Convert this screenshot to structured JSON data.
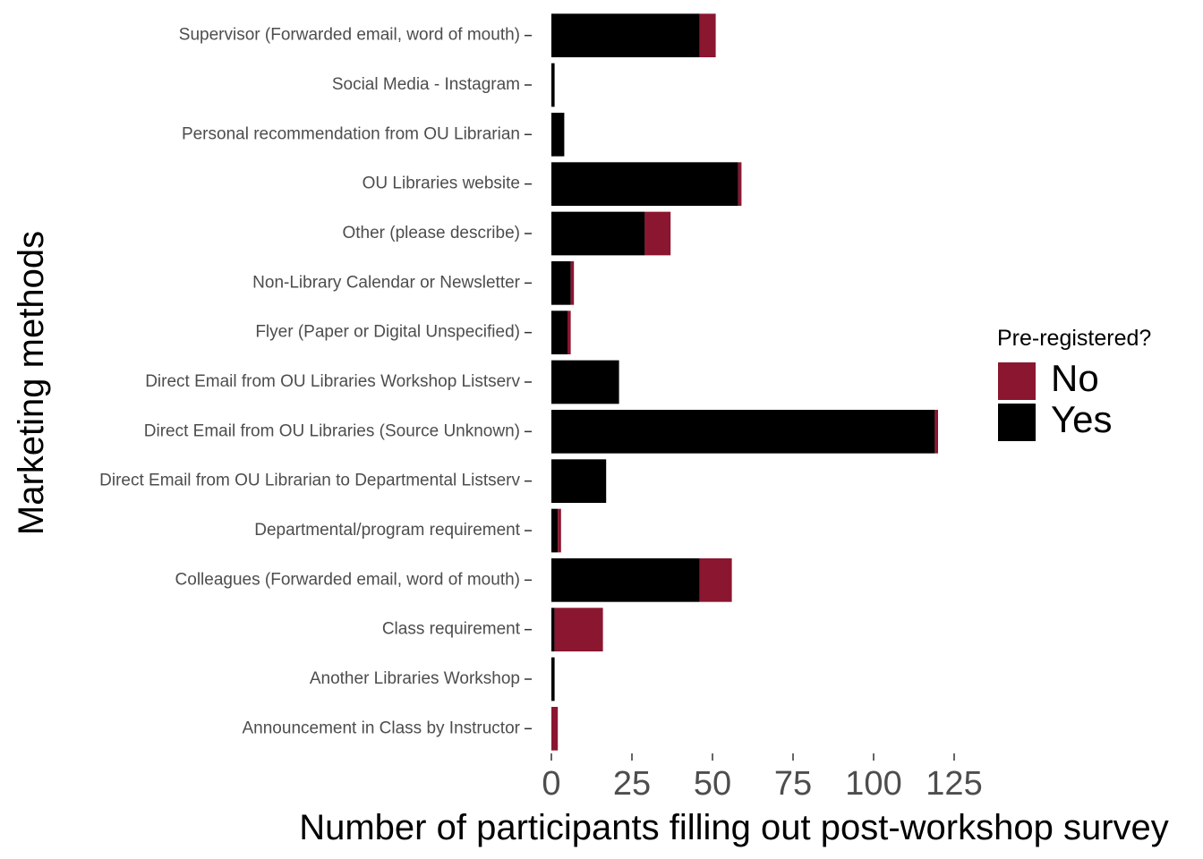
{
  "chart_data": {
    "type": "bar",
    "orientation": "horizontal",
    "stacked": true,
    "xlabel": "Number of participants filling out post-workshop survey",
    "ylabel": "Marketing methods",
    "xlim": [
      0,
      125
    ],
    "x_ticks": [
      "0",
      "25",
      "50",
      "75",
      "100",
      "125"
    ],
    "x_tick_values": [
      0,
      25,
      50,
      75,
      100,
      125
    ],
    "grid": false,
    "categories": [
      "Supervisor (Forwarded email, word of mouth)",
      "Social Media - Instagram",
      "Personal recommendation from OU Librarian",
      "OU Libraries website",
      "Other (please describe)",
      "Non-Library Calendar or Newsletter",
      "Flyer (Paper or Digital Unspecified)",
      "Direct Email from OU Libraries Workshop Listserv",
      "Direct Email from OU Libraries (Source Unknown)",
      "Direct Email from OU Librarian to Departmental Listserv",
      "Departmental/program requirement",
      "Colleagues (Forwarded email, word of mouth)",
      "Class requirement",
      "Another Libraries Workshop",
      "Announcement in Class by Instructor"
    ],
    "series": [
      {
        "name": "Yes",
        "color": "#000000",
        "values": [
          46,
          1,
          4,
          58,
          29,
          6,
          5,
          21,
          119,
          17,
          2,
          46,
          1,
          1,
          0
        ]
      },
      {
        "name": "No",
        "color": "#8b1630",
        "values": [
          5,
          0,
          0,
          1,
          8,
          1,
          1,
          0,
          1,
          0,
          1,
          10,
          15,
          0,
          2
        ]
      }
    ],
    "legend": {
      "title": "Pre-registered?",
      "position": "right",
      "entries": [
        {
          "label": "No",
          "color": "#8b1630"
        },
        {
          "label": "Yes",
          "color": "#000000"
        }
      ]
    }
  }
}
